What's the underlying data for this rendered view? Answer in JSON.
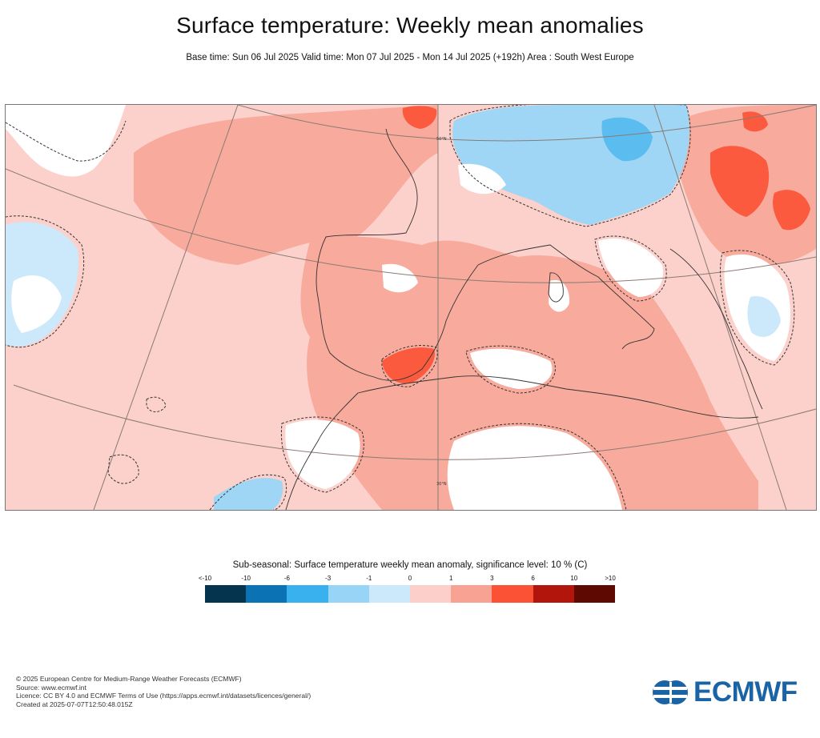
{
  "title": "Surface temperature: Weekly mean anomalies",
  "subtitle": "Base time: Sun 06 Jul 2025 Valid time: Mon 07 Jul 2025 - Mon 14 Jul 2025 (+192h) Area : South West Europe",
  "map": {
    "area": "South West Europe",
    "graticule_labels": [
      "50°N",
      "30°N"
    ],
    "colors": {
      "land_outline": "#333333",
      "graticule": "#8a7a74",
      "significance_contour": "#333333"
    }
  },
  "legend": {
    "title": "Sub-seasonal: Surface temperature weekly mean anomaly, significance level: 10 % (C)",
    "labels": [
      "<-10",
      "-10",
      "-6",
      "-3",
      "-1",
      "0",
      "1",
      "3",
      "6",
      "10",
      ">10"
    ],
    "colors": [
      "#05344e",
      "#0b73b4",
      "#39b1ee",
      "#97d4f6",
      "#cce9fb",
      "#fdcfca",
      "#f8a294",
      "#fb5236",
      "#b1150b",
      "#5f0903"
    ]
  },
  "footer": {
    "copyright": "© 2025 European Centre for Medium-Range Weather Forecasts (ECMWF)",
    "source": "Source: www.ecmwf.int",
    "licence": "Licence: CC BY 4.0 and ECMWF Terms of Use (https://apps.ecmwf.int/datasets/licences/general/)",
    "created": "Created at 2025-07-07T12:50:48.015Z"
  },
  "logo": {
    "text": "ECMWF",
    "color": "#1a64a6"
  }
}
